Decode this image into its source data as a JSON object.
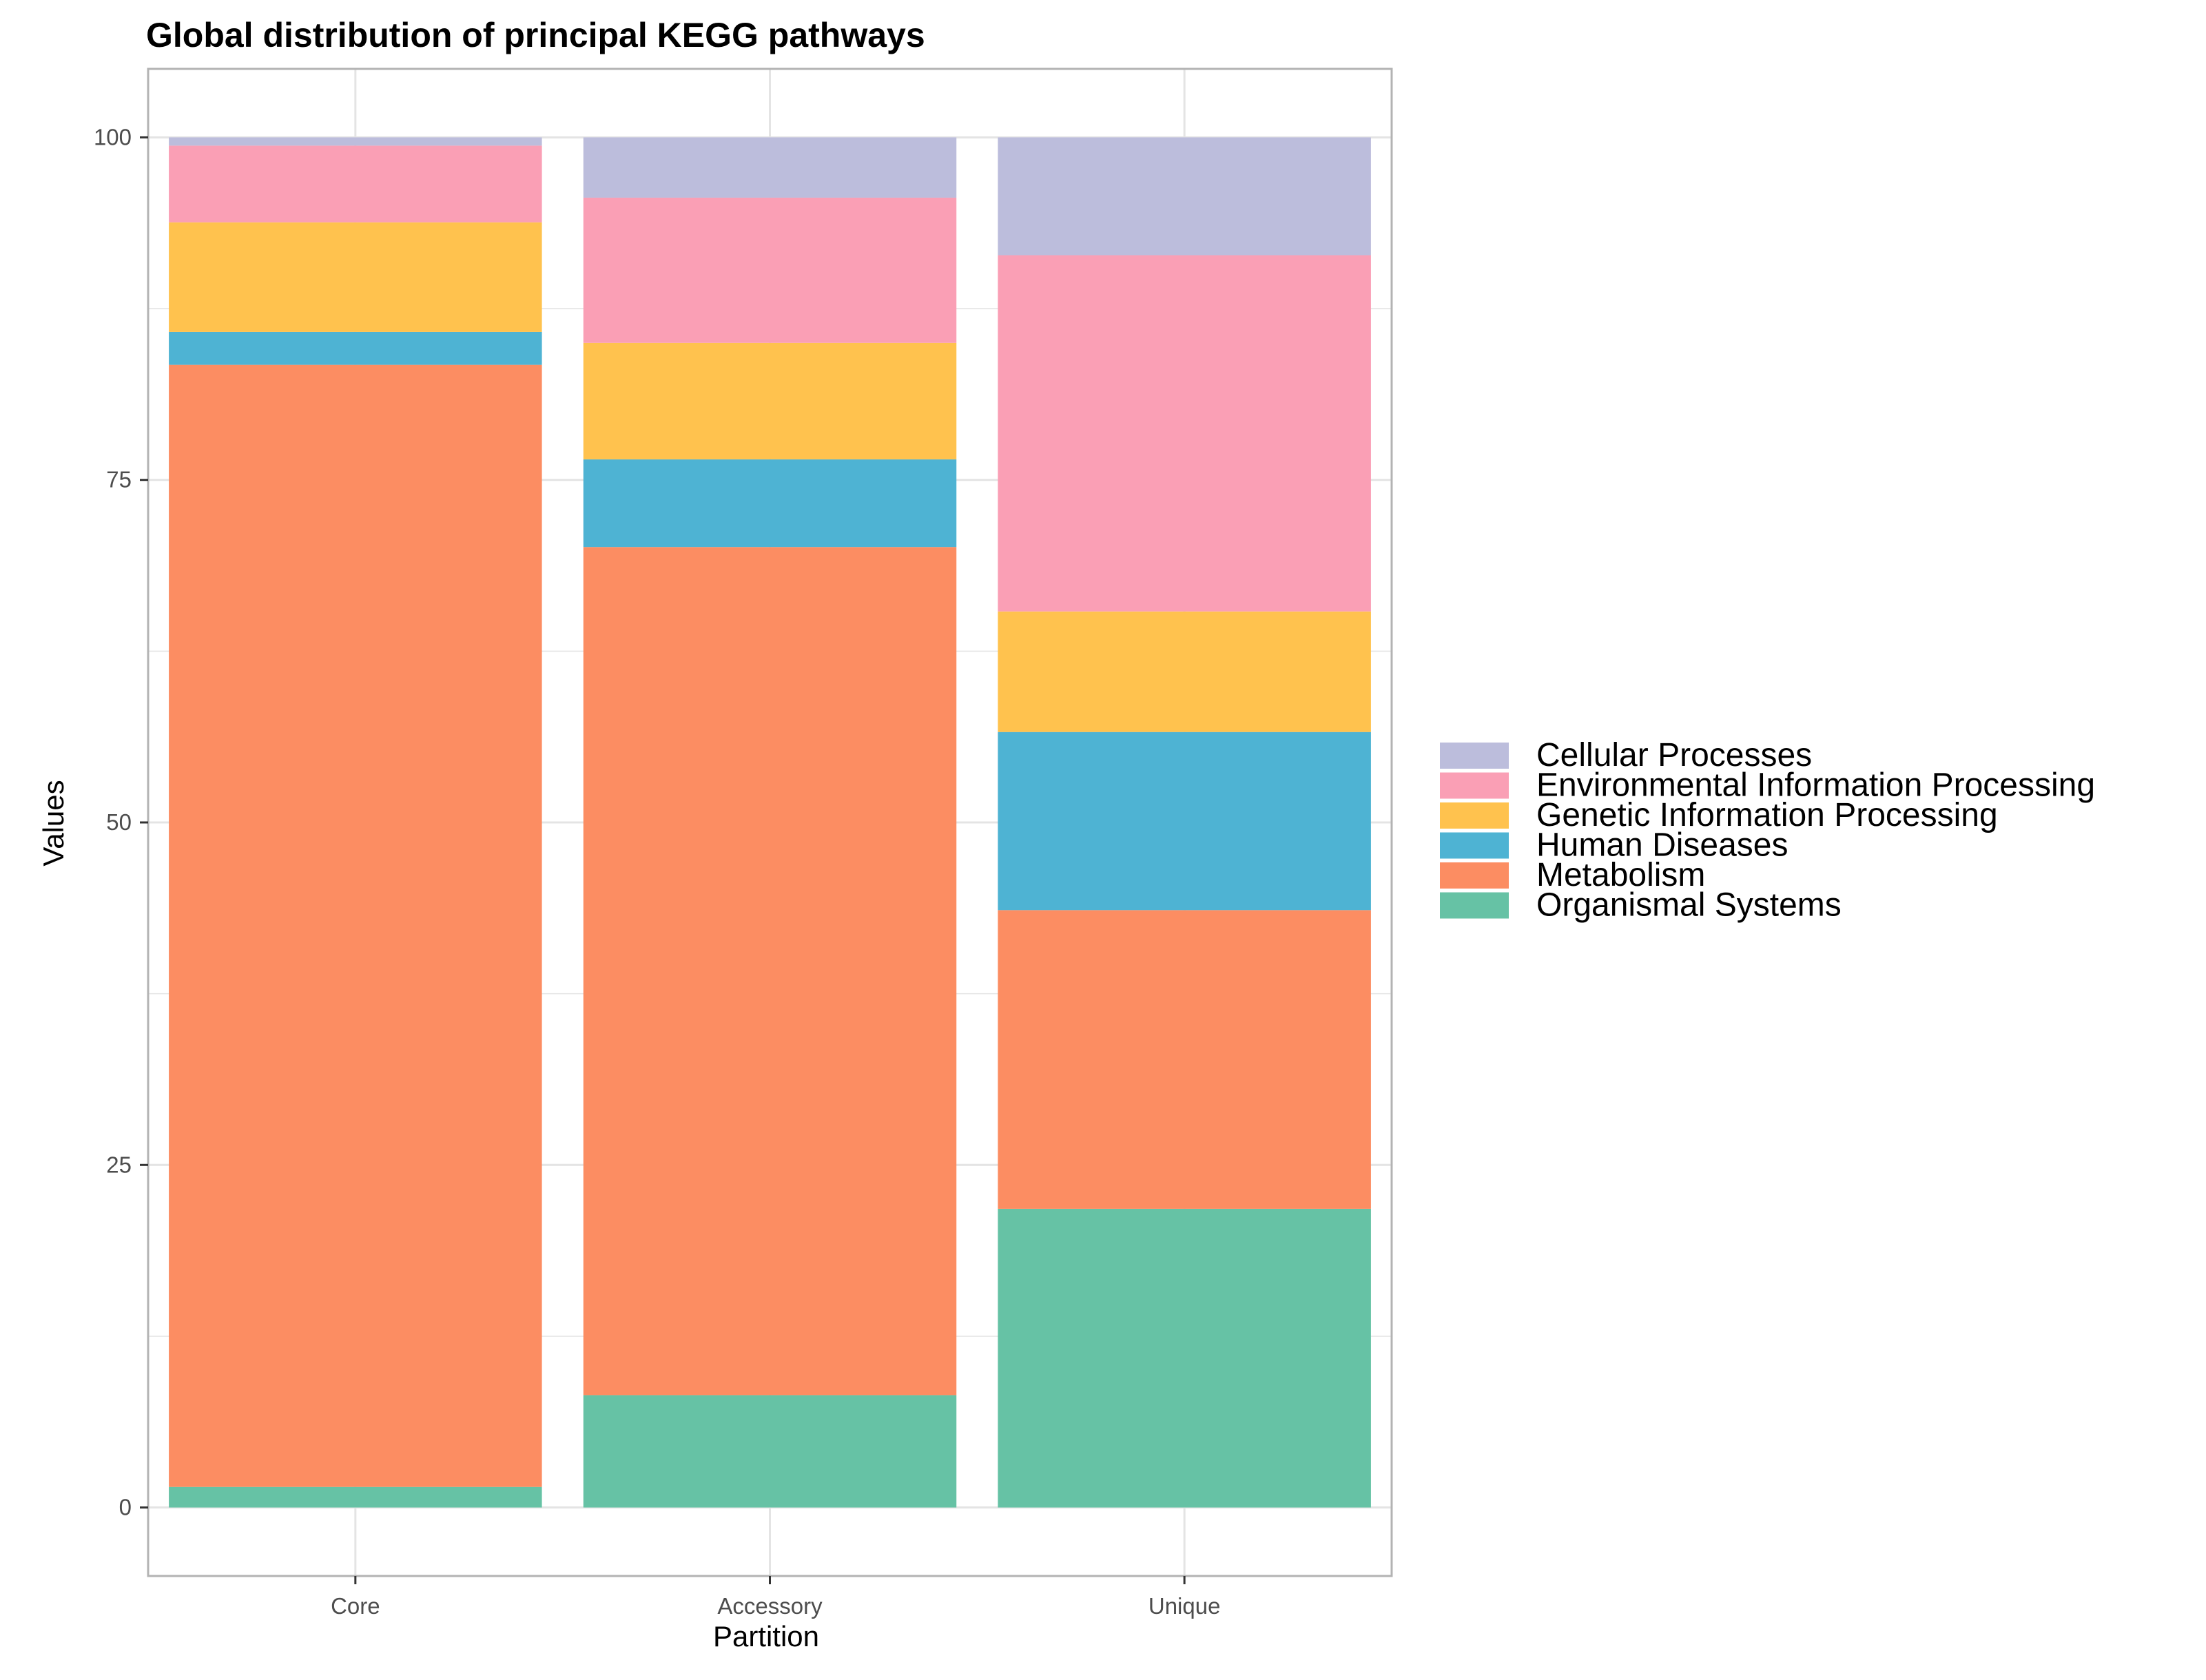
{
  "chart_data": {
    "type": "bar",
    "stacked": true,
    "title": "Global distribution of principal KEGG pathways",
    "xlabel": "Partition",
    "ylabel": "Values",
    "categories": [
      "Core",
      "Accessory",
      "Unique"
    ],
    "ylim": [
      -5,
      105
    ],
    "yticks": [
      0,
      25,
      50,
      75,
      100
    ],
    "grid": true,
    "legend_position": "right",
    "series": [
      {
        "name": "Organismal Systems",
        "color": "#66c2a5",
        "values": [
          1.5,
          8.2,
          21.8
        ]
      },
      {
        "name": "Metabolism",
        "color": "#fc8d62",
        "values": [
          81.9,
          61.9,
          21.8
        ]
      },
      {
        "name": "Human Diseases",
        "color": "#4eb3d3",
        "values": [
          2.4,
          6.4,
          13.0
        ]
      },
      {
        "name": "Genetic Information Processing",
        "color": "#ffc24e",
        "values": [
          8.0,
          8.5,
          8.8
        ]
      },
      {
        "name": "Environmental Information Processing",
        "color": "#fa9fb5",
        "values": [
          5.6,
          10.6,
          26.0
        ]
      },
      {
        "name": "Cellular Processes",
        "color": "#bcbddc",
        "values": [
          0.6,
          4.4,
          8.6
        ]
      }
    ],
    "legend_order": [
      "Cellular Processes",
      "Environmental Information Processing",
      "Genetic Information Processing",
      "Human Diseases",
      "Metabolism",
      "Organismal Systems"
    ]
  }
}
